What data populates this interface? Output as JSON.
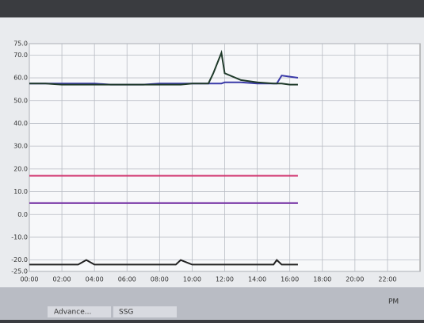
{
  "chart_data": {
    "type": "line",
    "x": [
      0,
      1,
      2,
      3,
      3.5,
      4,
      5,
      6,
      7,
      8,
      9,
      9.3,
      10,
      11,
      11.3,
      11.8,
      12,
      13,
      14,
      15,
      15.2,
      15.5,
      16,
      16.5
    ],
    "series": [
      {
        "color": "#3a3aa8",
        "values": [
          57.5,
          57.5,
          57.5,
          57.5,
          57.5,
          57.5,
          57,
          57,
          57,
          57.5,
          57.5,
          57.5,
          57.5,
          57.5,
          57.5,
          57.5,
          58,
          58,
          57.5,
          57.5,
          57.5,
          61,
          60.5,
          60
        ]
      },
      {
        "color": "#1f3a2a",
        "values": [
          57.5,
          57.5,
          57,
          57,
          57,
          57,
          57,
          57,
          57,
          57,
          57,
          57,
          57.5,
          57.5,
          62,
          71,
          62,
          59,
          58,
          57.5,
          57.5,
          57.5,
          57,
          57
        ]
      },
      {
        "color": "#d0306c",
        "values": [
          17,
          17,
          17,
          17,
          17,
          17,
          17,
          17,
          17,
          17,
          17,
          17,
          17,
          17,
          17,
          17,
          17,
          17,
          17,
          17,
          17,
          17,
          17,
          17
        ]
      },
      {
        "color": "#7a3aa8",
        "values": [
          5,
          5,
          5,
          5,
          5,
          5,
          5,
          5,
          5,
          5,
          5,
          5,
          5,
          5,
          5,
          5,
          5,
          5,
          5,
          5,
          5,
          5,
          5,
          5
        ]
      },
      {
        "color": "#222222",
        "values": [
          -22,
          -22,
          -22,
          -22,
          -20,
          -22,
          -22,
          -22,
          -22,
          -22,
          -22,
          -20,
          -22,
          -22,
          -22,
          -22,
          -22,
          -22,
          -22,
          -22,
          -20,
          -22,
          -22,
          -22
        ]
      }
    ],
    "xlim": [
      0,
      24
    ],
    "xticks": [
      {
        "value": 0,
        "label": "00:00"
      },
      {
        "value": 2,
        "label": "02:00"
      },
      {
        "value": 4,
        "label": "04:00"
      },
      {
        "value": 6,
        "label": "06:00"
      },
      {
        "value": 8,
        "label": "08:00"
      },
      {
        "value": 10,
        "label": "10:00"
      },
      {
        "value": 12,
        "label": "12:00"
      },
      {
        "value": 14,
        "label": "14:00"
      },
      {
        "value": 16,
        "label": "16:00"
      },
      {
        "value": 18,
        "label": "18:00"
      },
      {
        "value": 20,
        "label": "20:00"
      },
      {
        "value": 22,
        "label": "22:00"
      }
    ],
    "ylim": [
      -25,
      75
    ],
    "yticks": [
      {
        "value": -25,
        "label": "-25.0"
      },
      {
        "value": -20,
        "label": "-20.0"
      },
      {
        "value": -10,
        "label": "-10.0"
      },
      {
        "value": 0,
        "label": "0.0"
      },
      {
        "value": 10,
        "label": "10.0"
      },
      {
        "value": 20,
        "label": "20.0"
      },
      {
        "value": 30,
        "label": "30.0"
      },
      {
        "value": 40,
        "label": "40.0"
      },
      {
        "value": 50,
        "label": "50.0"
      },
      {
        "value": 60,
        "label": "60.0"
      },
      {
        "value": 70,
        "label": "70.0"
      },
      {
        "value": 75,
        "label": "75.0"
      }
    ],
    "grid": true
  },
  "taskbar": {
    "items": [
      "Advance...",
      "SSG"
    ],
    "clock": "PM"
  }
}
